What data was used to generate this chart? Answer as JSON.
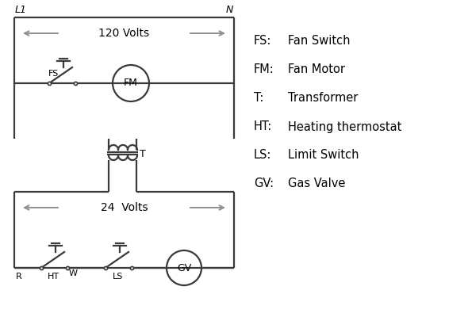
{
  "bg_color": "#ffffff",
  "line_color": "#3a3a3a",
  "arrow_color": "#909090",
  "text_color": "#000000",
  "legend": [
    [
      "FS:",
      "Fan Switch"
    ],
    [
      "FM:",
      "Fan Motor"
    ],
    [
      "T:",
      "Transformer"
    ],
    [
      "HT:",
      "Heating thermostat"
    ],
    [
      "LS:",
      "Limit Switch"
    ],
    [
      "GV:",
      "Gas Valve"
    ]
  ],
  "volts_120_label": "120 Volts",
  "volts_24_label": "24  Volts",
  "L1_label": "L1",
  "N_label": "N",
  "fig_w": 5.9,
  "fig_h": 4.0,
  "dpi": 100
}
